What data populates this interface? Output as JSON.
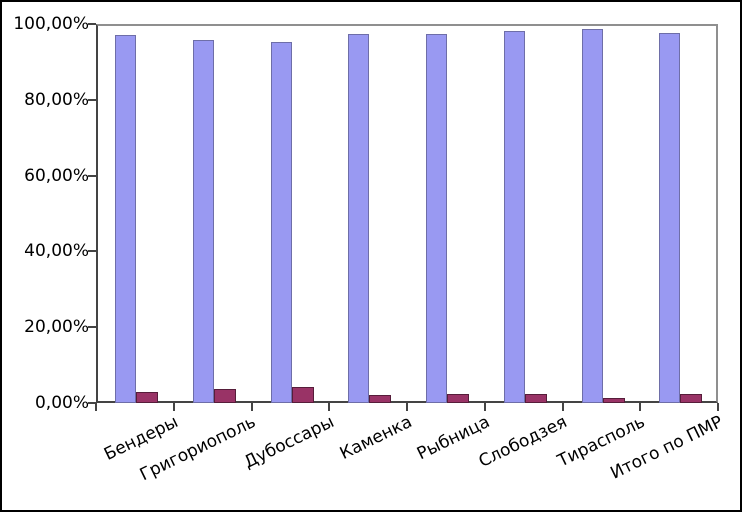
{
  "chart_data": {
    "type": "bar",
    "title": "",
    "xlabel": "",
    "ylabel": "",
    "categories": [
      "Бендеры",
      "Григориополь",
      "Дубоссары",
      "Каменка",
      "Рыбница",
      "Слободзея",
      "Тирасполь",
      "Итого по ПМР"
    ],
    "series": [
      {
        "name": "series-blue",
        "color": "#9999f2",
        "border_color": "#6e6ea8",
        "values": [
          97.2,
          95.7,
          95.3,
          97.4,
          97.3,
          98.1,
          98.6,
          97.5
        ]
      },
      {
        "name": "series-maroon",
        "color": "#993366",
        "border_color": "#561d3a",
        "values": [
          2.9,
          3.8,
          4.1,
          2.2,
          2.4,
          2.3,
          1.4,
          2.4
        ]
      }
    ],
    "y_axis": {
      "min": 0,
      "max": 100,
      "ticks": [
        {
          "label": "100,00%",
          "value": 100
        },
        {
          "label": "80,00%",
          "value": 80
        },
        {
          "label": "60,00%",
          "value": 60
        },
        {
          "label": "40,00%",
          "value": 40
        },
        {
          "label": "20,00%",
          "value": 20
        },
        {
          "label": "0,00%",
          "value": 0
        }
      ]
    },
    "grid": false,
    "legend": false,
    "x_label_rotation_deg": -26,
    "colors": {
      "background": "#ffffff",
      "outer_border": "#000000",
      "axis": "#444444",
      "plot_border": "#8f8f8f",
      "text": "#000000"
    }
  }
}
